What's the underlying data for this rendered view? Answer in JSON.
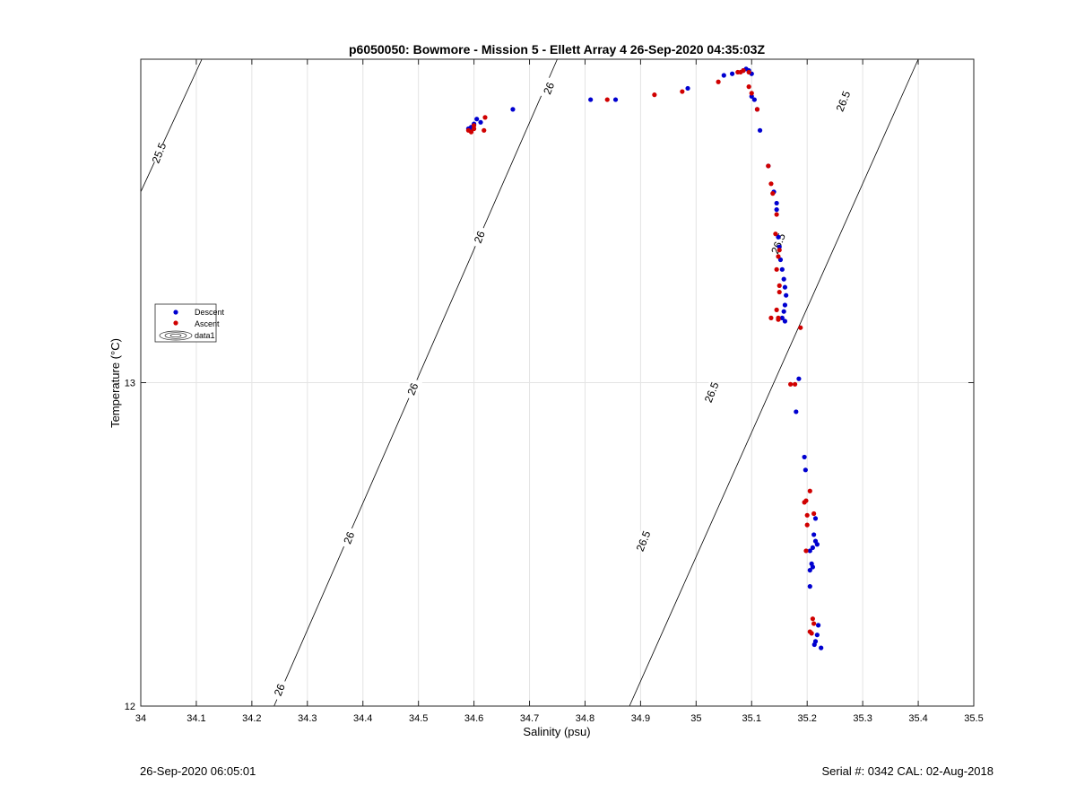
{
  "footer": {
    "left": "26-Sep-2020 06:05:01",
    "right": "Serial #: 0342  CAL: 02-Aug-2018"
  },
  "colors": {
    "descent": "#0000d0",
    "ascent": "#d00000",
    "grid": "#e4e4e4",
    "contour": "#000000"
  },
  "chart_data": {
    "type": "scatter",
    "title": "p6050050: Bowmore - Mission 5 - Ellett Array 4 26-Sep-2020 04:35:03Z",
    "xlabel": "Salinity (psu)",
    "ylabel": "Temperature (°C)",
    "xlim": [
      34,
      35.5
    ],
    "ylim": [
      12,
      14
    ],
    "xticks": [
      "34",
      "34.1",
      "34.2",
      "34.3",
      "34.4",
      "34.5",
      "34.6",
      "34.7",
      "34.8",
      "34.9",
      "35",
      "35.1",
      "35.2",
      "35.3",
      "35.4",
      "35.5"
    ],
    "yticks": [
      "12",
      "13"
    ],
    "grid": true,
    "legend": {
      "placement": "left-middle",
      "entries": [
        "Descent",
        "Ascent",
        "data1"
      ]
    },
    "contours": [
      {
        "label": "25.5",
        "points": [
          [
            34.0,
            13.59
          ],
          [
            34.11,
            14.0
          ]
        ]
      },
      {
        "label": "26",
        "points": [
          [
            34.24,
            12.0
          ],
          [
            34.75,
            14.0
          ]
        ]
      },
      {
        "label": "26.5",
        "points": [
          [
            34.88,
            12.0
          ],
          [
            35.4,
            14.0
          ]
        ]
      }
    ],
    "contour_labels": [
      {
        "label": "25.5",
        "x": 34.033,
        "y": 13.71,
        "angle": -68
      },
      {
        "label": "26",
        "x": 34.25,
        "y": 12.05,
        "angle": -68
      },
      {
        "label": "26",
        "x": 34.375,
        "y": 12.52,
        "angle": -68
      },
      {
        "label": "26",
        "x": 34.49,
        "y": 12.98,
        "angle": -68
      },
      {
        "label": "26",
        "x": 34.61,
        "y": 13.45,
        "angle": -68
      },
      {
        "label": "26",
        "x": 34.735,
        "y": 13.91,
        "angle": -68
      },
      {
        "label": "26.5",
        "x": 34.905,
        "y": 12.51,
        "angle": -68
      },
      {
        "label": "26.5",
        "x": 35.028,
        "y": 12.97,
        "angle": -68
      },
      {
        "label": "26.5",
        "x": 35.148,
        "y": 13.43,
        "angle": -68
      },
      {
        "label": "26.5",
        "x": 35.265,
        "y": 13.87,
        "angle": -68
      }
    ],
    "series": [
      {
        "name": "Descent",
        "points": [
          [
            34.59,
            13.785
          ],
          [
            34.595,
            13.79
          ],
          [
            34.6,
            13.8
          ],
          [
            34.605,
            13.815
          ],
          [
            34.612,
            13.805
          ],
          [
            34.595,
            13.78
          ],
          [
            34.67,
            13.845
          ],
          [
            34.81,
            13.875
          ],
          [
            34.855,
            13.875
          ],
          [
            34.985,
            13.91
          ],
          [
            35.05,
            13.95
          ],
          [
            35.065,
            13.955
          ],
          [
            35.085,
            13.965
          ],
          [
            35.09,
            13.97
          ],
          [
            35.095,
            13.965
          ],
          [
            35.1,
            13.955
          ],
          [
            35.1,
            13.885
          ],
          [
            35.105,
            13.875
          ],
          [
            35.11,
            13.845
          ],
          [
            35.115,
            13.78
          ],
          [
            35.13,
            13.67
          ],
          [
            35.14,
            13.59
          ],
          [
            35.145,
            13.555
          ],
          [
            35.145,
            13.535
          ],
          [
            35.148,
            13.45
          ],
          [
            35.15,
            13.42
          ],
          [
            35.152,
            13.38
          ],
          [
            35.155,
            13.35
          ],
          [
            35.158,
            13.32
          ],
          [
            35.16,
            13.295
          ],
          [
            35.162,
            13.27
          ],
          [
            35.16,
            13.24
          ],
          [
            35.158,
            13.22
          ],
          [
            35.155,
            13.2
          ],
          [
            35.16,
            13.19
          ],
          [
            35.185,
            13.012
          ],
          [
            35.18,
            12.91
          ],
          [
            35.195,
            12.77
          ],
          [
            35.197,
            12.73
          ],
          [
            35.215,
            12.58
          ],
          [
            35.212,
            12.53
          ],
          [
            35.215,
            12.51
          ],
          [
            35.218,
            12.5
          ],
          [
            35.21,
            12.49
          ],
          [
            35.205,
            12.48
          ],
          [
            35.208,
            12.44
          ],
          [
            35.205,
            12.42
          ],
          [
            35.21,
            12.43
          ],
          [
            35.205,
            12.37
          ],
          [
            35.22,
            12.25
          ],
          [
            35.218,
            12.22
          ],
          [
            35.215,
            12.2
          ],
          [
            35.213,
            12.19
          ],
          [
            35.225,
            12.18
          ]
        ]
      },
      {
        "name": "Ascent",
        "points": [
          [
            34.59,
            13.78
          ],
          [
            34.595,
            13.775
          ],
          [
            34.6,
            13.785
          ],
          [
            34.62,
            13.82
          ],
          [
            34.618,
            13.78
          ],
          [
            34.6,
            13.795
          ],
          [
            34.84,
            13.875
          ],
          [
            34.925,
            13.89
          ],
          [
            34.975,
            13.9
          ],
          [
            35.04,
            13.93
          ],
          [
            35.075,
            13.96
          ],
          [
            35.08,
            13.96
          ],
          [
            35.085,
            13.965
          ],
          [
            35.095,
            13.96
          ],
          [
            35.095,
            13.915
          ],
          [
            35.1,
            13.895
          ],
          [
            35.11,
            13.845
          ],
          [
            35.13,
            13.67
          ],
          [
            35.135,
            13.615
          ],
          [
            35.138,
            13.585
          ],
          [
            35.145,
            13.52
          ],
          [
            35.143,
            13.46
          ],
          [
            35.15,
            13.41
          ],
          [
            35.148,
            13.39
          ],
          [
            35.145,
            13.35
          ],
          [
            35.15,
            13.3
          ],
          [
            35.15,
            13.28
          ],
          [
            35.145,
            13.225
          ],
          [
            35.148,
            13.2
          ],
          [
            35.135,
            13.2
          ],
          [
            35.148,
            13.195
          ],
          [
            35.188,
            13.17
          ],
          [
            35.17,
            12.995
          ],
          [
            35.178,
            12.995
          ],
          [
            35.195,
            12.63
          ],
          [
            35.198,
            12.635
          ],
          [
            35.205,
            12.665
          ],
          [
            35.2,
            12.59
          ],
          [
            35.212,
            12.595
          ],
          [
            35.2,
            12.56
          ],
          [
            35.198,
            12.48
          ],
          [
            35.21,
            12.27
          ],
          [
            35.212,
            12.255
          ],
          [
            35.205,
            12.23
          ],
          [
            35.208,
            12.225
          ]
        ]
      }
    ]
  }
}
